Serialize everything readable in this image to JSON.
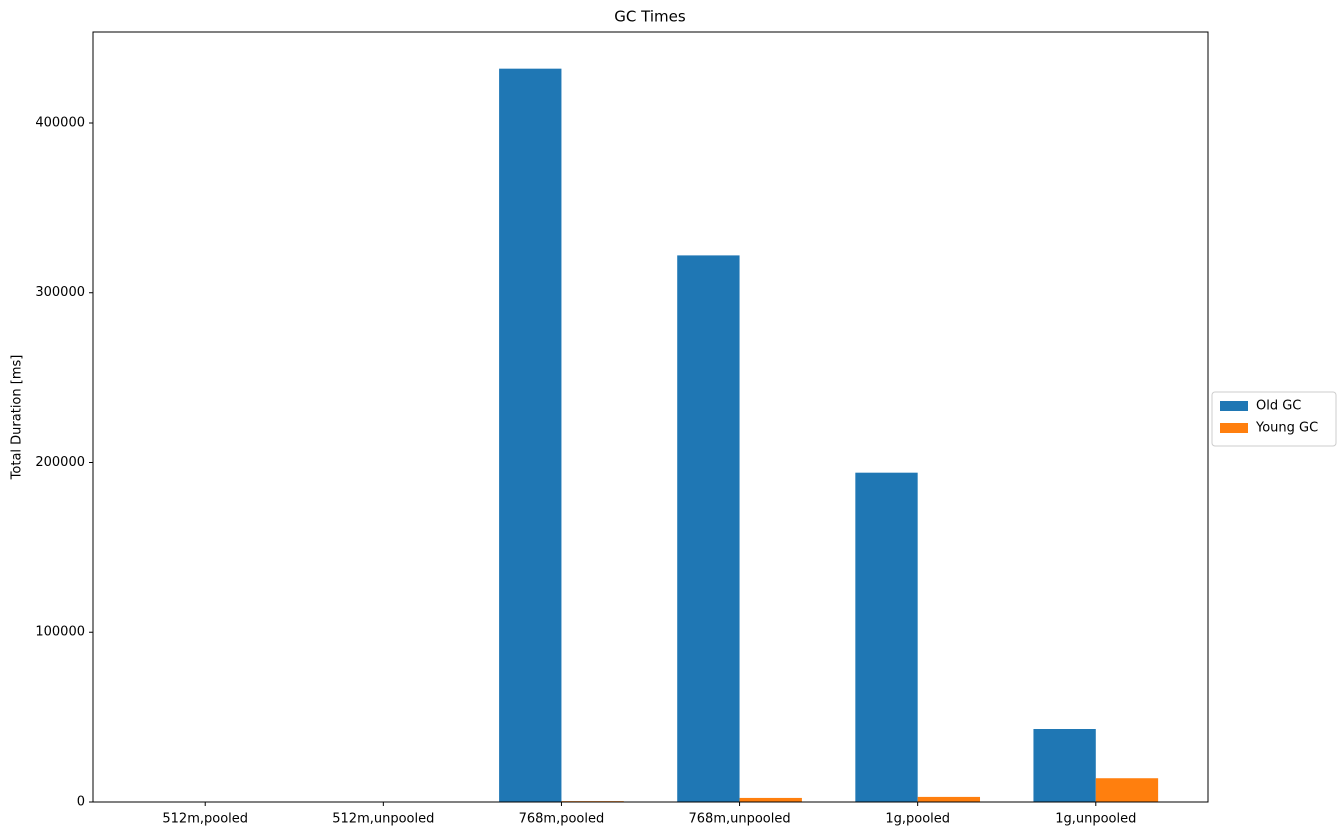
{
  "chart_data": {
    "type": "bar",
    "title": "GC Times",
    "y_label": "Total Duration [ms]",
    "categories": [
      "512m,pooled",
      "512m,unpooled",
      "768m,pooled",
      "768m,unpooled",
      "1g,pooled",
      "1g,unpooled"
    ],
    "series": [
      {
        "name": "Old GC",
        "color": "#1f77b4",
        "values": [
          0,
          0,
          432000,
          322000,
          194000,
          43000
        ]
      },
      {
        "name": "Young GC",
        "color": "#ff7f0e",
        "values": [
          0,
          0,
          500,
          2400,
          3000,
          14000
        ]
      }
    ],
    "ylim": [
      0,
      453600
    ],
    "yticks": [
      0,
      100000,
      200000,
      300000,
      400000
    ],
    "legend": "right"
  }
}
